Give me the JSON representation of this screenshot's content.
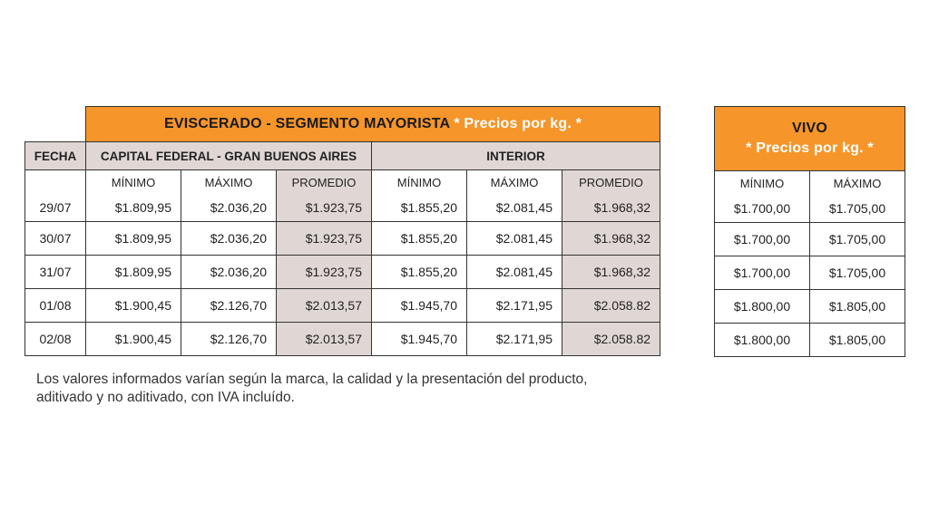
{
  "main": {
    "title": "EVISCERADO - SEGMENTO MAYORISTA",
    "title_note": "* Precios por kg. *",
    "fecha_label": "FECHA",
    "group_cf": "CAPITAL FEDERAL - GRAN BUENOS AIRES",
    "group_int": "INTERIOR",
    "col_min": "MÍNIMO",
    "col_max": "MÁXIMO",
    "col_avg": "PROMEDIO",
    "rows": [
      {
        "fecha": "29/07",
        "cf_min": "$1.809,95",
        "cf_max": "$2.036,20",
        "cf_avg": "$1.923,75",
        "int_min": "$1.855,20",
        "int_max": "$2.081,45",
        "int_avg": "$1.968,32"
      },
      {
        "fecha": "30/07",
        "cf_min": "$1.809,95",
        "cf_max": "$2.036,20",
        "cf_avg": "$1.923,75",
        "int_min": "$1.855,20",
        "int_max": "$2.081,45",
        "int_avg": "$1.968,32"
      },
      {
        "fecha": "31/07",
        "cf_min": "$1.809,95",
        "cf_max": "$2.036,20",
        "cf_avg": "$1.923,75",
        "int_min": "$1.855,20",
        "int_max": "$2.081,45",
        "int_avg": "$1.968,32"
      },
      {
        "fecha": "01/08",
        "cf_min": "$1.900,45",
        "cf_max": "$2.126,70",
        "cf_avg": "$2.013,57",
        "int_min": "$1.945,70",
        "int_max": "$2.171,95",
        "int_avg": "$2.058.82"
      },
      {
        "fecha": "02/08",
        "cf_min": "$1.900,45",
        "cf_max": "$2.126,70",
        "cf_avg": "$2.013,57",
        "int_min": "$1.945,70",
        "int_max": "$2.171,95",
        "int_avg": "$2.058.82"
      }
    ]
  },
  "vivo": {
    "title": "VIVO",
    "title_note": "* Precios por kg. *",
    "col_min": "MÍNIMO",
    "col_max": "MÁXIMO",
    "rows": [
      {
        "min": "$1.700,00",
        "max": "$1.705,00"
      },
      {
        "min": "$1.700,00",
        "max": "$1.705,00"
      },
      {
        "min": "$1.700,00",
        "max": "$1.705,00"
      },
      {
        "min": "$1.800,00",
        "max": "$1.805,00"
      },
      {
        "min": "$1.800,00",
        "max": "$1.805,00"
      }
    ]
  },
  "footnote": {
    "line1": "Los valores informados varían según la marca, la calidad y la presentación del producto,",
    "line2": "aditivado y no aditivado, con IVA incluído."
  },
  "colors": {
    "accent_orange": "#f5952a",
    "header_gray": "#e0d7d5"
  }
}
